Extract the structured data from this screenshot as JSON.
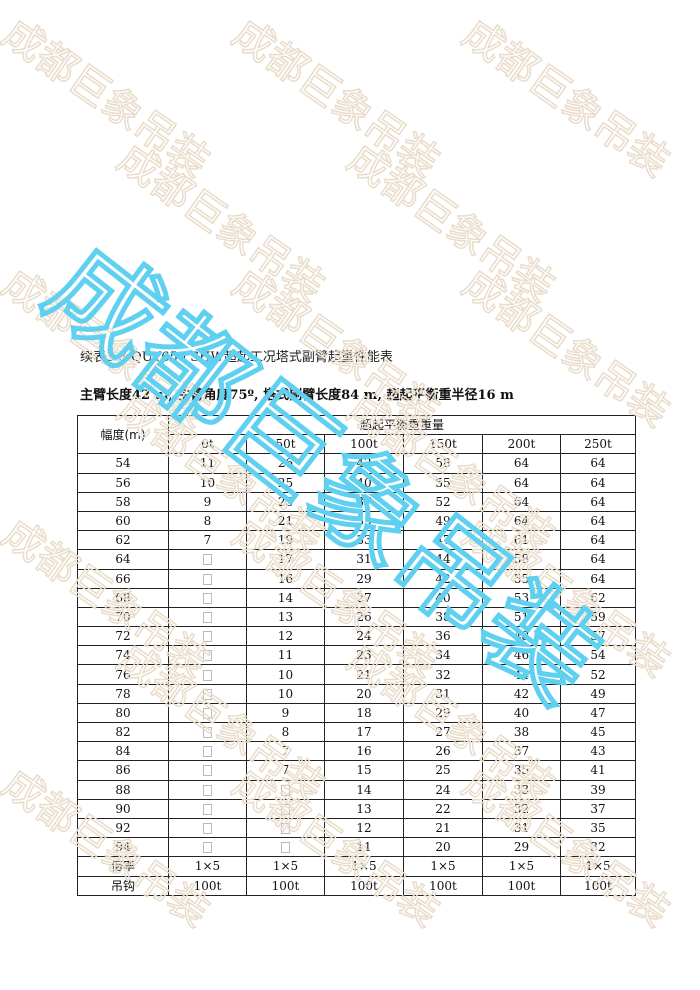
{
  "watermark": {
    "text": "成都巨象吊装",
    "faint_color": "#e9dccb",
    "accent_color": "#5fd0f0"
  },
  "title": "续表3-3 QUY650 SHW超起工况塔式副臂起重性能表",
  "subtitle": "主臂长度42 m, 主臂角度75º, 塔式副臂长度84 m, 超起平衡重半径16 m",
  "table": {
    "radius_header": "幅度(m)",
    "group_header": "超起平衡重重量",
    "columns": [
      "0t",
      "50t",
      "100t",
      "150t",
      "200t",
      "250t"
    ],
    "rows": [
      [
        "54",
        "11",
        "26",
        "42",
        "58",
        "64",
        "64"
      ],
      [
        "56",
        "10",
        "25",
        "40",
        "55",
        "64",
        "64"
      ],
      [
        "58",
        "9",
        "23",
        "37",
        "52",
        "64",
        "64"
      ],
      [
        "60",
        "8",
        "21",
        "35",
        "49",
        "64",
        "64"
      ],
      [
        "62",
        "7",
        "19",
        "33",
        "47",
        "61",
        "64"
      ],
      [
        "64",
        "",
        "17",
        "31",
        "44",
        "58",
        "64"
      ],
      [
        "66",
        "",
        "16",
        "29",
        "42",
        "55",
        "64"
      ],
      [
        "68",
        "",
        "14",
        "27",
        "40",
        "53",
        "62"
      ],
      [
        "70",
        "",
        "13",
        "26",
        "38",
        "51",
        "59"
      ],
      [
        "72",
        "",
        "12",
        "24",
        "36",
        "48",
        "57"
      ],
      [
        "74",
        "",
        "11",
        "23",
        "34",
        "46",
        "54"
      ],
      [
        "76",
        "",
        "10",
        "21",
        "32",
        "44",
        "52"
      ],
      [
        "78",
        "",
        "10",
        "20",
        "31",
        "42",
        "49"
      ],
      [
        "80",
        "",
        "9",
        "18",
        "29",
        "40",
        "47"
      ],
      [
        "82",
        "",
        "8",
        "17",
        "27",
        "38",
        "45"
      ],
      [
        "84",
        "",
        "7",
        "16",
        "26",
        "37",
        "43"
      ],
      [
        "86",
        "",
        "7",
        "15",
        "25",
        "35",
        "41"
      ],
      [
        "88",
        "",
        "",
        "14",
        "24",
        "33",
        "39"
      ],
      [
        "90",
        "",
        "",
        "13",
        "22",
        "32",
        "37"
      ],
      [
        "92",
        "",
        "",
        "12",
        "21",
        "31",
        "35"
      ],
      [
        "94",
        "",
        "",
        "11",
        "20",
        "29",
        "32"
      ]
    ],
    "reeving": {
      "label": "倍率",
      "values": [
        "1×5",
        "1×5",
        "1×5",
        "1×5",
        "1×5",
        "1×5"
      ]
    },
    "hook": {
      "label": "吊钩",
      "values": [
        "100t",
        "100t",
        "100t",
        "100t",
        "100t",
        "100t"
      ]
    }
  }
}
